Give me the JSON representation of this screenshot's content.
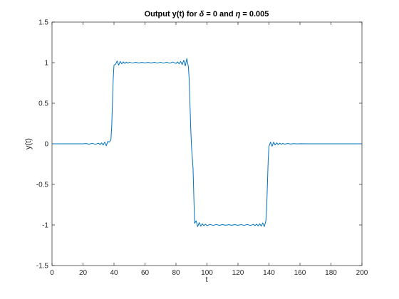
{
  "chart_data": {
    "type": "line",
    "title": {
      "prefix": "Output y(t) for ",
      "delta_symbol": "δ",
      "middle": " = 0 and  ",
      "eta_symbol": "η",
      "suffix": " = 0.005"
    },
    "xlabel": "t",
    "ylabel": "y(t)",
    "xlim": [
      0,
      200
    ],
    "ylim": [
      -1.5,
      1.5
    ],
    "xticks": [
      0,
      20,
      40,
      60,
      80,
      100,
      120,
      140,
      160,
      180,
      200
    ],
    "yticks": [
      -1.5,
      -1,
      -0.5,
      0,
      0.5,
      1,
      1.5
    ],
    "xtick_labels": [
      "0",
      "20",
      "40",
      "60",
      "80",
      "100",
      "120",
      "140",
      "160",
      "180",
      "200"
    ],
    "ytick_labels": [
      "-1.5",
      "-1",
      "-0.5",
      "0",
      "0.5",
      "1",
      "1.5"
    ],
    "grid": false,
    "series": [
      {
        "color": "#0072BD",
        "x": [
          0,
          20,
          22,
          24,
          26,
          28,
          30,
          31,
          32,
          33,
          34,
          35,
          36,
          37,
          38,
          38.5,
          39,
          39.5,
          40,
          41,
          42,
          43,
          44,
          45,
          46,
          47,
          48,
          49,
          50,
          52,
          54,
          56,
          58,
          60,
          62,
          64,
          66,
          68,
          70,
          72,
          74,
          76,
          78,
          80,
          81,
          82,
          83,
          84,
          85,
          86,
          87,
          88,
          88.5,
          89,
          89.5,
          90,
          91,
          92,
          93,
          94,
          95,
          96,
          97,
          98,
          99,
          100,
          102,
          104,
          106,
          108,
          110,
          112,
          114,
          116,
          118,
          120,
          122,
          124,
          126,
          128,
          130,
          131,
          132,
          133,
          134,
          135,
          136,
          137,
          138,
          138.5,
          139,
          139.5,
          140,
          141,
          142,
          143,
          144,
          145,
          146,
          147,
          148,
          149,
          150,
          152,
          154,
          156,
          158,
          160,
          165,
          170,
          180,
          190,
          200
        ],
        "y": [
          0,
          0,
          0.003,
          -0.004,
          0.005,
          -0.006,
          0.008,
          -0.01,
          0.012,
          -0.015,
          0.02,
          -0.025,
          0.03,
          0.02,
          0.05,
          0.2,
          0.5,
          0.8,
          0.97,
          0.98,
          1.02,
          0.97,
          1.015,
          0.985,
          1.01,
          0.99,
          1.008,
          0.993,
          1.005,
          0.995,
          1.004,
          0.996,
          1.003,
          0.997,
          1.003,
          0.996,
          1.004,
          0.995,
          1.005,
          0.994,
          1.006,
          0.993,
          1.008,
          0.99,
          1.01,
          0.985,
          1.015,
          0.975,
          1.03,
          0.96,
          1.05,
          0.95,
          0.8,
          0.5,
          0.2,
          -0.03,
          -0.3,
          -0.98,
          -0.95,
          -1.02,
          -0.97,
          -1.015,
          -0.985,
          -1.01,
          -0.99,
          -1.008,
          -0.993,
          -1.005,
          -0.995,
          -1.004,
          -0.996,
          -1.003,
          -0.997,
          -1.003,
          -0.996,
          -1.004,
          -0.995,
          -1.005,
          -0.994,
          -1.006,
          -0.993,
          -1.008,
          -0.99,
          -1.01,
          -0.985,
          -1.015,
          -0.975,
          -1.02,
          -0.95,
          -0.8,
          -0.5,
          -0.2,
          -0.03,
          0.02,
          -0.03,
          0.02,
          -0.015,
          0.012,
          -0.01,
          0.008,
          -0.006,
          0.005,
          -0.004,
          0.003,
          -0.002,
          0.002,
          -0.001,
          0.001,
          0,
          0,
          0,
          0,
          0
        ]
      }
    ]
  }
}
